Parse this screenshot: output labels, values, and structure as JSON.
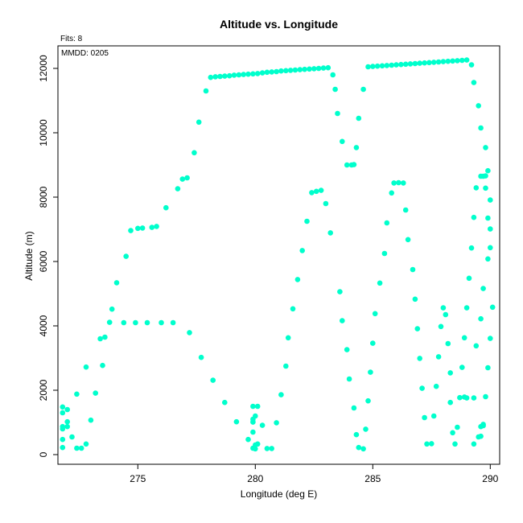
{
  "chart_data": {
    "type": "scatter",
    "title": "Altitude vs. Longitude",
    "xlabel": "Longitude (deg E)",
    "ylabel": "Altitude (m)",
    "annotations": {
      "fits": "Fits: 8",
      "mmdd": "MMDD: 0205"
    },
    "xlim": [
      271.6,
      290.4
    ],
    "ylim": [
      -300,
      12700
    ],
    "xticks": [
      275,
      280,
      285,
      290
    ],
    "yticks": [
      0,
      2000,
      4000,
      6000,
      8000,
      10000,
      12000
    ],
    "point_color": "#00ffcc",
    "grid": false,
    "points": [
      [
        271.8,
        1480
      ],
      [
        271.8,
        1300
      ],
      [
        272.0,
        1400
      ],
      [
        271.8,
        870
      ],
      [
        271.8,
        800
      ],
      [
        272.0,
        1020
      ],
      [
        271.8,
        470
      ],
      [
        272.0,
        870
      ],
      [
        272.2,
        550
      ],
      [
        271.8,
        220
      ],
      [
        272.4,
        1880
      ],
      [
        272.4,
        200
      ],
      [
        272.6,
        200
      ],
      [
        272.8,
        330
      ],
      [
        272.8,
        2720
      ],
      [
        273.0,
        1070
      ],
      [
        273.2,
        1910
      ],
      [
        273.4,
        3600
      ],
      [
        273.5,
        2770
      ],
      [
        273.6,
        3650
      ],
      [
        273.8,
        4110
      ],
      [
        273.9,
        4520
      ],
      [
        274.1,
        5340
      ],
      [
        274.4,
        4100
      ],
      [
        274.5,
        6160
      ],
      [
        274.7,
        6960
      ],
      [
        274.9,
        4100
      ],
      [
        275.0,
        7030
      ],
      [
        275.2,
        7040
      ],
      [
        275.4,
        4100
      ],
      [
        275.6,
        7060
      ],
      [
        275.8,
        7090
      ],
      [
        276.0,
        4100
      ],
      [
        276.2,
        7670
      ],
      [
        276.5,
        4100
      ],
      [
        276.7,
        8260
      ],
      [
        276.9,
        8560
      ],
      [
        277.1,
        8600
      ],
      [
        277.2,
        3790
      ],
      [
        277.4,
        9380
      ],
      [
        277.6,
        10330
      ],
      [
        277.7,
        3020
      ],
      [
        277.9,
        11300
      ],
      [
        278.2,
        2310
      ],
      [
        278.1,
        11720
      ],
      [
        278.3,
        11740
      ],
      [
        278.5,
        11750
      ],
      [
        278.7,
        1620
      ],
      [
        278.7,
        11760
      ],
      [
        278.9,
        11770
      ],
      [
        279.1,
        11790
      ],
      [
        279.2,
        1020
      ],
      [
        279.3,
        11800
      ],
      [
        279.5,
        11810
      ],
      [
        279.7,
        470
      ],
      [
        279.7,
        11820
      ],
      [
        279.9,
        11830
      ],
      [
        279.9,
        1500
      ],
      [
        280.1,
        1500
      ],
      [
        279.9,
        1100
      ],
      [
        279.9,
        1010
      ],
      [
        280.0,
        1200
      ],
      [
        279.9,
        700
      ],
      [
        280.1,
        330
      ],
      [
        280.0,
        300
      ],
      [
        279.9,
        200
      ],
      [
        280.0,
        180
      ],
      [
        280.1,
        11840
      ],
      [
        280.3,
        11860
      ],
      [
        280.3,
        910
      ],
      [
        280.5,
        11880
      ],
      [
        280.5,
        190
      ],
      [
        280.7,
        11890
      ],
      [
        280.7,
        190
      ],
      [
        280.9,
        11900
      ],
      [
        280.9,
        990
      ],
      [
        281.1,
        1860
      ],
      [
        281.1,
        11920
      ],
      [
        281.3,
        2750
      ],
      [
        281.3,
        11930
      ],
      [
        281.4,
        3630
      ],
      [
        281.5,
        11940
      ],
      [
        281.6,
        4530
      ],
      [
        281.7,
        11950
      ],
      [
        281.8,
        5440
      ],
      [
        281.9,
        11960
      ],
      [
        282.0,
        6340
      ],
      [
        282.1,
        11970
      ],
      [
        282.2,
        7250
      ],
      [
        282.3,
        11980
      ],
      [
        282.4,
        8140
      ],
      [
        282.5,
        11990
      ],
      [
        282.6,
        8180
      ],
      [
        282.7,
        12000
      ],
      [
        282.8,
        8210
      ],
      [
        282.9,
        12010
      ],
      [
        283.0,
        7800
      ],
      [
        283.1,
        12020
      ],
      [
        283.2,
        6890
      ],
      [
        283.3,
        11800
      ],
      [
        283.4,
        11350
      ],
      [
        283.5,
        10600
      ],
      [
        283.6,
        5060
      ],
      [
        283.7,
        9730
      ],
      [
        283.7,
        4160
      ],
      [
        283.9,
        3260
      ],
      [
        283.9,
        9000
      ],
      [
        284.0,
        2350
      ],
      [
        284.1,
        9000
      ],
      [
        284.2,
        9010
      ],
      [
        284.2,
        1450
      ],
      [
        284.3,
        9540
      ],
      [
        284.4,
        10450
      ],
      [
        284.3,
        620
      ],
      [
        284.4,
        220
      ],
      [
        284.6,
        180
      ],
      [
        284.6,
        11350
      ],
      [
        284.7,
        790
      ],
      [
        284.8,
        12050
      ],
      [
        284.8,
        1670
      ],
      [
        284.9,
        2560
      ],
      [
        285.0,
        12060
      ],
      [
        285.0,
        3460
      ],
      [
        285.1,
        4380
      ],
      [
        285.2,
        12070
      ],
      [
        285.3,
        5330
      ],
      [
        285.4,
        12080
      ],
      [
        285.5,
        6250
      ],
      [
        285.6,
        12090
      ],
      [
        285.6,
        7200
      ],
      [
        285.8,
        12100
      ],
      [
        285.8,
        8130
      ],
      [
        285.9,
        8440
      ],
      [
        286.0,
        12110
      ],
      [
        286.1,
        8450
      ],
      [
        286.2,
        12120
      ],
      [
        286.3,
        8440
      ],
      [
        286.4,
        12130
      ],
      [
        286.4,
        7600
      ],
      [
        286.6,
        12140
      ],
      [
        286.5,
        6680
      ],
      [
        286.7,
        5750
      ],
      [
        286.8,
        12150
      ],
      [
        286.8,
        4830
      ],
      [
        286.9,
        3910
      ],
      [
        287.0,
        12160
      ],
      [
        287.0,
        2990
      ],
      [
        287.1,
        2060
      ],
      [
        287.2,
        12170
      ],
      [
        287.2,
        1150
      ],
      [
        287.3,
        330
      ],
      [
        287.4,
        12180
      ],
      [
        287.5,
        340
      ],
      [
        287.6,
        12190
      ],
      [
        287.6,
        1200
      ],
      [
        287.7,
        2120
      ],
      [
        287.8,
        3040
      ],
      [
        287.8,
        12200
      ],
      [
        287.9,
        3980
      ],
      [
        288.0,
        4560
      ],
      [
        288.0,
        12210
      ],
      [
        288.1,
        4350
      ],
      [
        288.2,
        3450
      ],
      [
        288.3,
        2540
      ],
      [
        288.2,
        12220
      ],
      [
        288.3,
        1620
      ],
      [
        288.4,
        12230
      ],
      [
        288.4,
        680
      ],
      [
        288.5,
        330
      ],
      [
        288.6,
        12240
      ],
      [
        288.6,
        850
      ],
      [
        288.7,
        1770
      ],
      [
        288.8,
        2710
      ],
      [
        288.8,
        12250
      ],
      [
        288.9,
        3630
      ],
      [
        289.0,
        4560
      ],
      [
        289.0,
        12260
      ],
      [
        289.1,
        5480
      ],
      [
        289.2,
        12110
      ],
      [
        289.2,
        6420
      ],
      [
        289.3,
        7370
      ],
      [
        289.3,
        11560
      ],
      [
        289.4,
        8290
      ],
      [
        289.5,
        10840
      ],
      [
        289.4,
        3380
      ],
      [
        289.3,
        1760
      ],
      [
        289.3,
        330
      ],
      [
        289.5,
        550
      ],
      [
        289.6,
        570
      ],
      [
        289.6,
        870
      ],
      [
        289.6,
        10150
      ],
      [
        289.7,
        900
      ],
      [
        289.8,
        9540
      ],
      [
        289.7,
        940
      ],
      [
        289.6,
        4220
      ],
      [
        289.6,
        8650
      ],
      [
        289.7,
        8650
      ],
      [
        289.7,
        5160
      ],
      [
        289.8,
        8660
      ],
      [
        289.9,
        8820
      ],
      [
        289.8,
        8280
      ],
      [
        289.9,
        7350
      ],
      [
        290.0,
        7010
      ],
      [
        290.0,
        7910
      ],
      [
        289.9,
        6080
      ],
      [
        290.0,
        6430
      ],
      [
        289.8,
        1800
      ],
      [
        289.9,
        2700
      ],
      [
        290.0,
        3610
      ],
      [
        290.1,
        4580
      ],
      [
        289.0,
        1760
      ],
      [
        288.9,
        1790
      ]
    ]
  }
}
